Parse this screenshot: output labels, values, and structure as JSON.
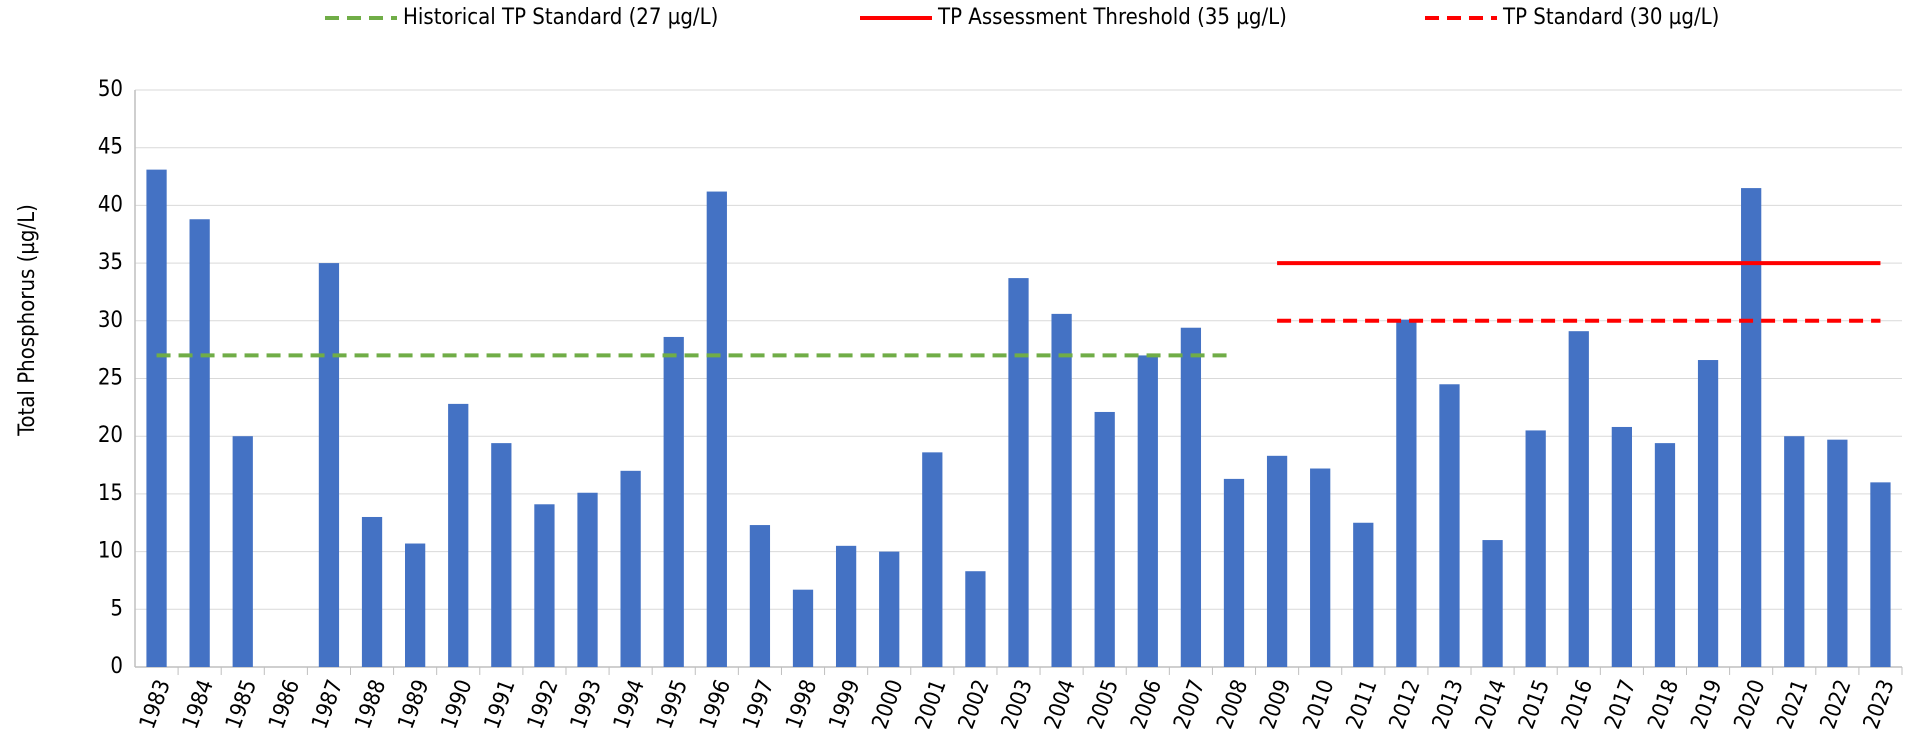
{
  "chart_data": {
    "type": "bar",
    "y_label": "Total Phosphorus (µg/L)",
    "categories": [
      "1983",
      "1984",
      "1985",
      "1986",
      "1987",
      "1988",
      "1989",
      "1990",
      "1991",
      "1992",
      "1993",
      "1994",
      "1995",
      "1996",
      "1997",
      "1998",
      "1999",
      "2000",
      "2001",
      "2002",
      "2003",
      "2004",
      "2005",
      "2006",
      "2007",
      "2008",
      "2009",
      "2010",
      "2011",
      "2012",
      "2013",
      "2014",
      "2015",
      "2016",
      "2017",
      "2018",
      "2019",
      "2020",
      "2021",
      "2022",
      "2023"
    ],
    "values": [
      43.1,
      38.8,
      20,
      null,
      35,
      13,
      10.7,
      22.8,
      19.4,
      14.1,
      15.1,
      17,
      28.6,
      41.2,
      12.3,
      6.7,
      10.5,
      10,
      18.6,
      8.3,
      33.7,
      30.6,
      22.1,
      27,
      29.4,
      16.3,
      18.3,
      17.2,
      12.5,
      30.1,
      24.5,
      11,
      20.5,
      29.1,
      20.8,
      19.4,
      26.6,
      41.5,
      20,
      19.7,
      16
    ],
    "color": "#4472c4",
    "lines": [
      {
        "name": "Historical TP Standard (27 µg/L)",
        "color": "#70ad47",
        "dashed": true,
        "values": [
          27,
          27,
          27,
          27,
          27,
          27,
          27,
          27,
          27,
          27,
          27,
          27,
          27,
          27,
          27,
          27,
          27,
          27,
          27,
          27,
          27,
          27,
          27,
          27,
          27,
          27,
          null,
          null,
          null,
          null,
          null,
          null,
          null,
          null,
          null,
          null,
          null,
          null,
          null,
          null,
          null
        ]
      },
      {
        "name": "TP Assessment Threshold (35 µg/L)",
        "color": "#ff0000",
        "dashed": false,
        "values": [
          null,
          null,
          null,
          null,
          null,
          null,
          null,
          null,
          null,
          null,
          null,
          null,
          null,
          null,
          null,
          null,
          null,
          null,
          null,
          null,
          null,
          null,
          null,
          null,
          null,
          null,
          35,
          35,
          35,
          35,
          35,
          35,
          35,
          35,
          35,
          35,
          35,
          35,
          35,
          35,
          35
        ]
      },
      {
        "name": "TP Standard (30 µg/L)",
        "color": "#ff0000",
        "dashed": true,
        "values": [
          null,
          null,
          null,
          null,
          null,
          null,
          null,
          null,
          null,
          null,
          null,
          null,
          null,
          null,
          null,
          null,
          null,
          null,
          null,
          null,
          null,
          null,
          null,
          null,
          null,
          null,
          30,
          30,
          30,
          30,
          30,
          30,
          30,
          30,
          30,
          30,
          30,
          30,
          30,
          30,
          30
        ]
      }
    ],
    "ylim": [
      0,
      50
    ],
    "yticks": [
      0,
      5,
      10,
      15,
      20,
      25,
      30,
      35,
      40,
      45,
      50
    ],
    "grid": true
  }
}
